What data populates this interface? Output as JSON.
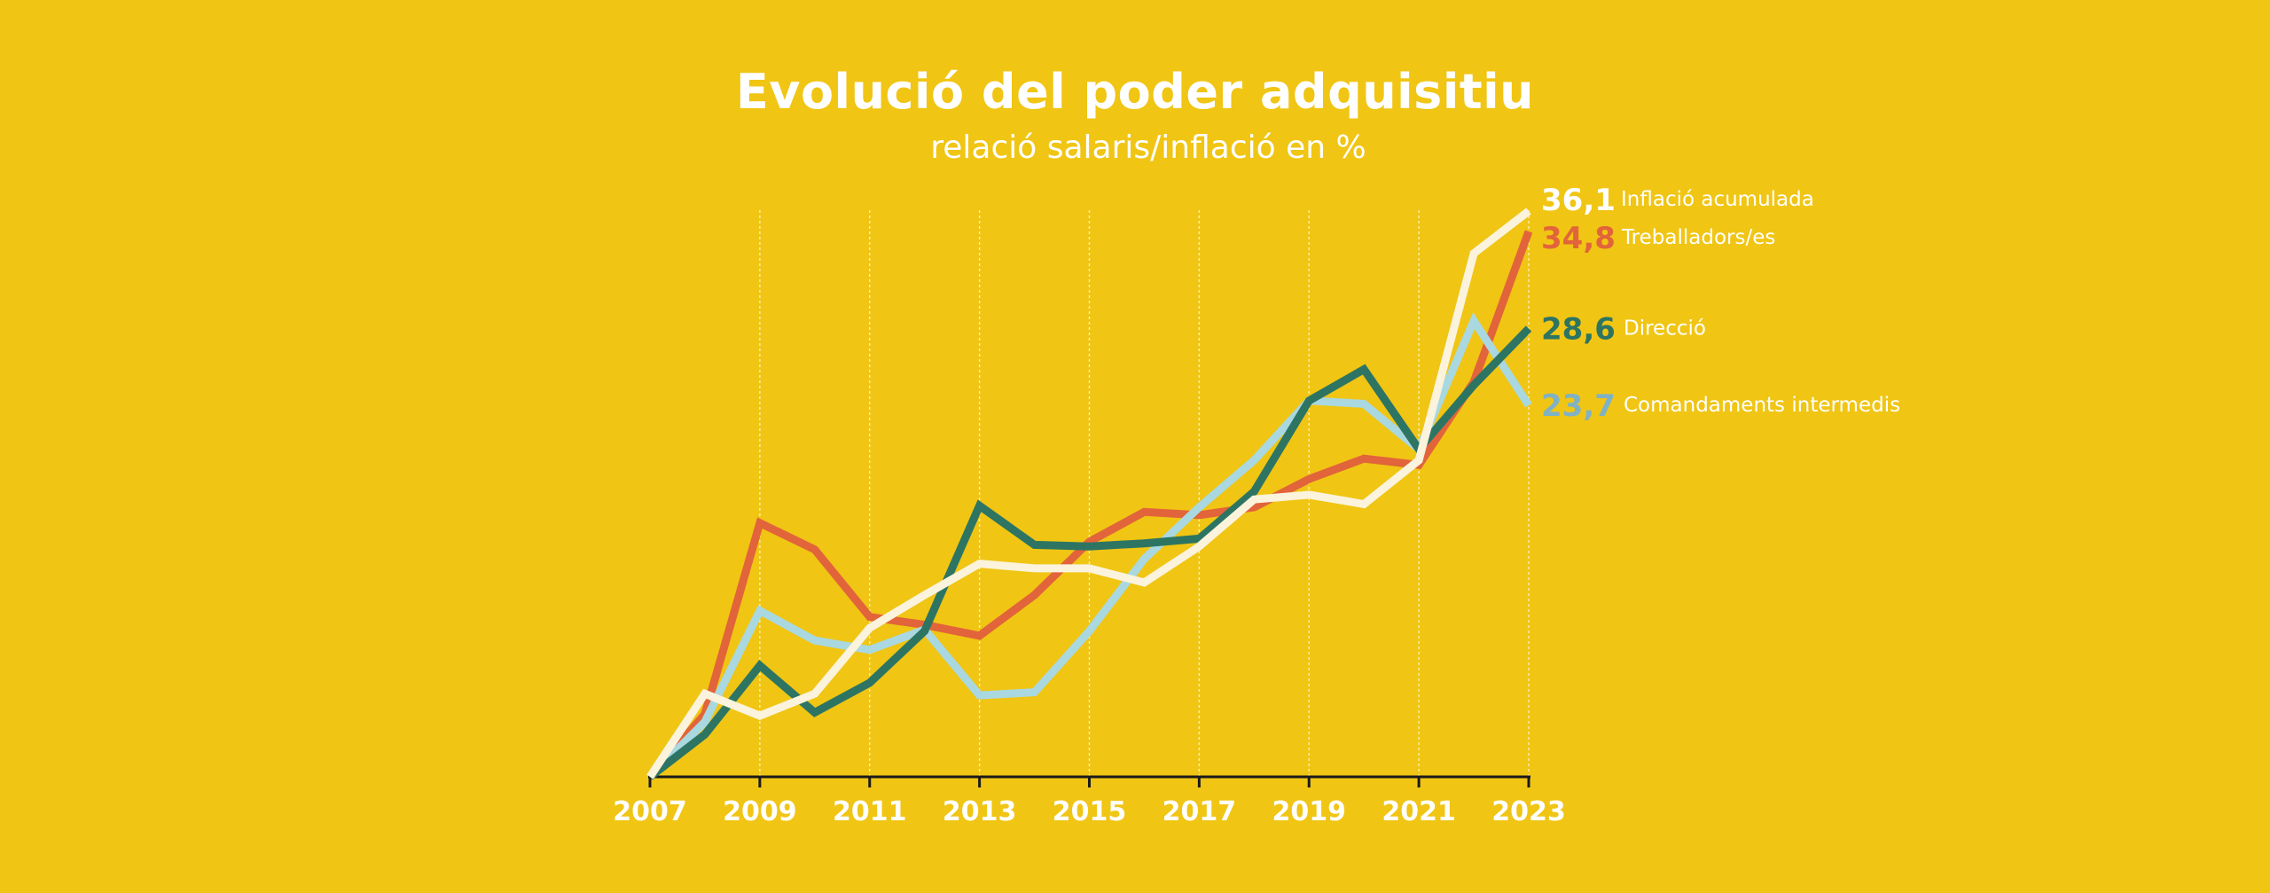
{
  "title": "Evolució del poder adquisitiu",
  "subtitle": "relació salaris/inflació en %",
  "colors": {
    "background": "#F0C514",
    "axis": "#1A1A1A",
    "gridline": "#FFF4C0",
    "text": "#FFFFFF"
  },
  "chart_data": {
    "type": "line",
    "title": "Evolució del poder adquisitiu",
    "subtitle": "relació salaris/inflació en %",
    "xlabel": "",
    "ylabel": "",
    "x": [
      2007,
      2008,
      2009,
      2010,
      2011,
      2012,
      2013,
      2014,
      2015,
      2016,
      2017,
      2018,
      2019,
      2020,
      2021,
      2022,
      2023
    ],
    "xticks": [
      "2007",
      "2009",
      "2011",
      "2013",
      "2015",
      "2017",
      "2019",
      "2021",
      "2023"
    ],
    "ylim": [
      0,
      36.1
    ],
    "grid": "vertical",
    "series": [
      {
        "name": "Treballadors/es",
        "color": "#E2643A",
        "end_label": "34,8",
        "values": [
          0,
          4.0,
          16.2,
          14.5,
          10.2,
          9.7,
          9.0,
          11.6,
          15.0,
          16.9,
          16.7,
          17.2,
          19.0,
          20.3,
          19.9,
          25.2,
          34.8
        ]
      },
      {
        "name": "Comandaments intermedis",
        "color": "#A9D8E0",
        "end_label": "23,7",
        "values": [
          0,
          3.5,
          10.6,
          8.7,
          8.1,
          9.4,
          5.2,
          5.4,
          9.3,
          13.9,
          17.2,
          20.2,
          24.0,
          23.8,
          20.9,
          29.1,
          23.7
        ]
      },
      {
        "name": "Direcció",
        "color": "#2D7562",
        "end_label": "28,6",
        "values": [
          0,
          2.7,
          7.1,
          4.1,
          6.0,
          9.3,
          17.3,
          14.8,
          14.7,
          14.9,
          15.2,
          18.2,
          24.0,
          26.0,
          20.9,
          25.0,
          28.6
        ]
      },
      {
        "name": "Inflació acumulada",
        "color": "#FBF3DC",
        "end_label": "36,1",
        "values": [
          0,
          5.3,
          3.9,
          5.3,
          9.5,
          11.6,
          13.6,
          13.3,
          13.3,
          12.4,
          14.7,
          17.7,
          18.0,
          17.4,
          20.2,
          33.4,
          36.1
        ]
      }
    ]
  }
}
